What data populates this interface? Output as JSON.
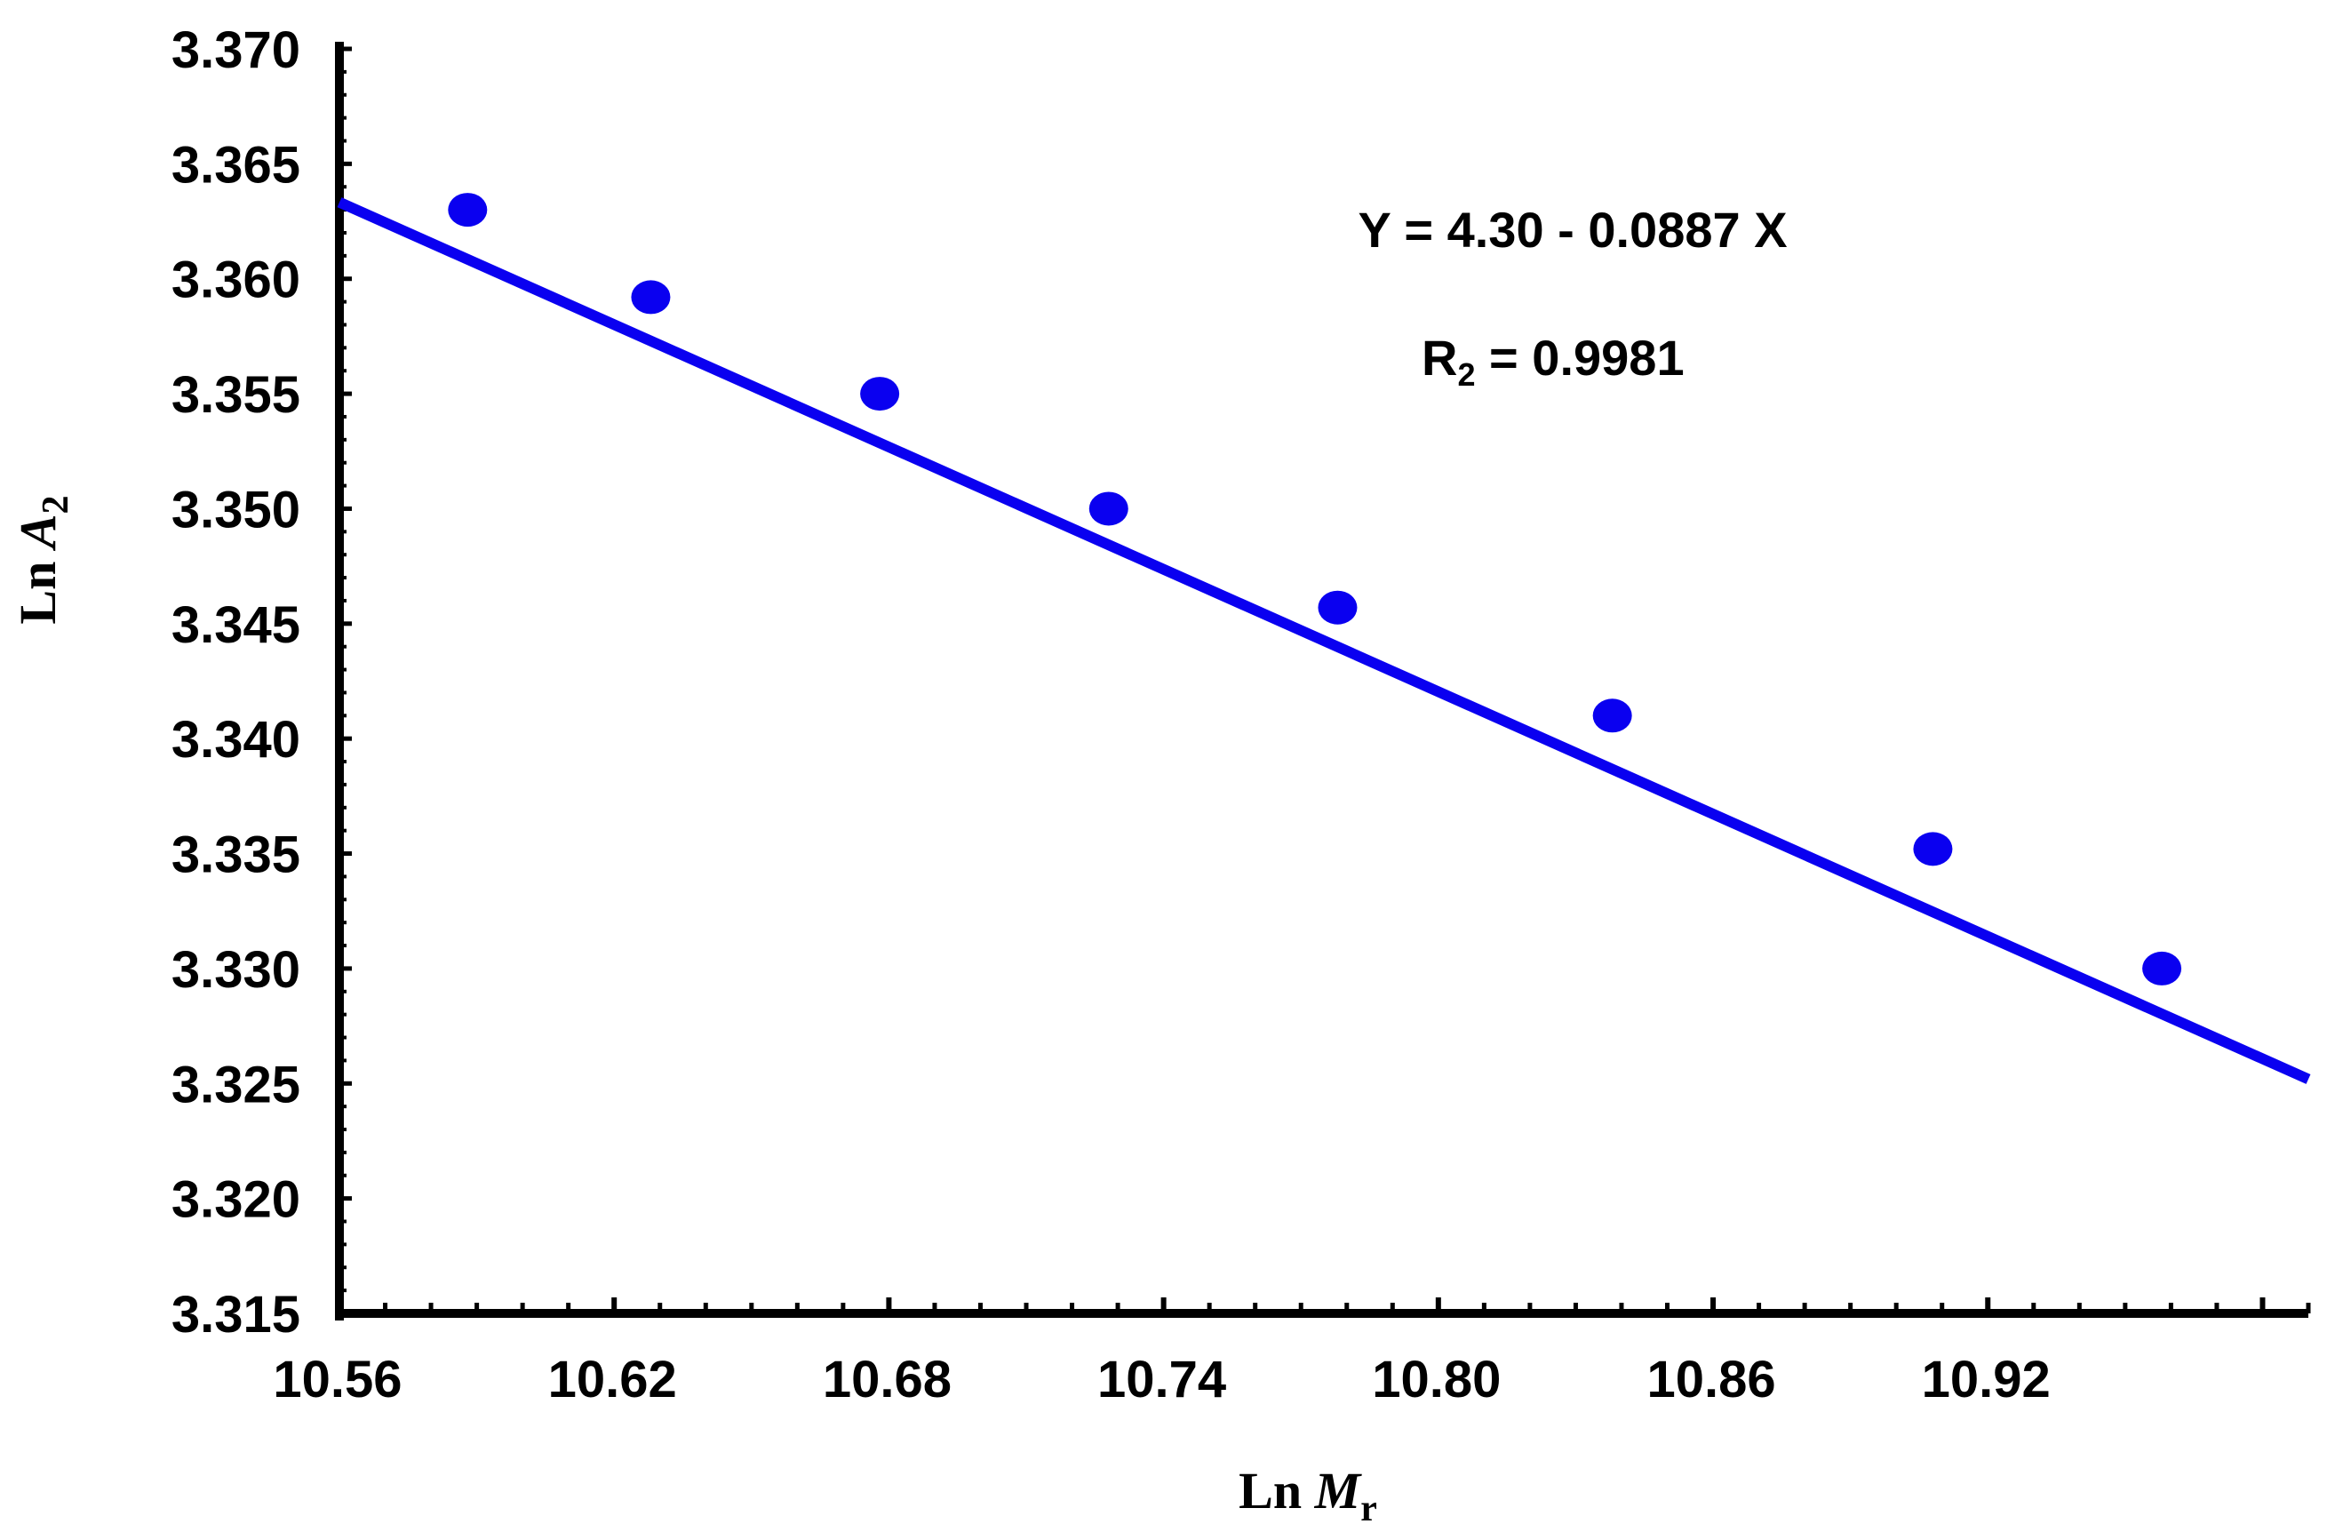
{
  "chart_data": {
    "type": "scatter",
    "xlabel": {
      "prefix": "Ln",
      "var": "M",
      "sub": "r"
    },
    "ylabel": {
      "prefix": "Ln",
      "var": "A",
      "sub": "2"
    },
    "xlim": [
      10.56,
      10.99
    ],
    "ylim": [
      3.315,
      3.37
    ],
    "x_ticks": [
      "10.56",
      "10.62",
      "10.68",
      "10.74",
      "10.80",
      "10.86",
      "10.92"
    ],
    "y_ticks": [
      "3.315",
      "3.320",
      "3.325",
      "3.330",
      "3.335",
      "3.340",
      "3.345",
      "3.350",
      "3.355",
      "3.360",
      "3.365",
      "3.370"
    ],
    "points": {
      "x": [
        10.588,
        10.628,
        10.678,
        10.728,
        10.778,
        10.838,
        10.908,
        10.958
      ],
      "y": [
        3.363,
        3.3592,
        3.355,
        3.35,
        3.3457,
        3.341,
        3.3352,
        3.33
      ]
    },
    "fit_line": {
      "intercept": 4.3,
      "slope": -0.0887,
      "x_range": [
        10.56,
        10.99
      ]
    },
    "annotations": {
      "equation": "Y = 4.30 - 0.0887 X",
      "r2_prefix": "R",
      "r2_sub": "2",
      "r2_suffix": " = 0.9981"
    },
    "colors": {
      "series": "#0a00f0",
      "axis": "#000000"
    },
    "grid": false,
    "legend": "none"
  }
}
